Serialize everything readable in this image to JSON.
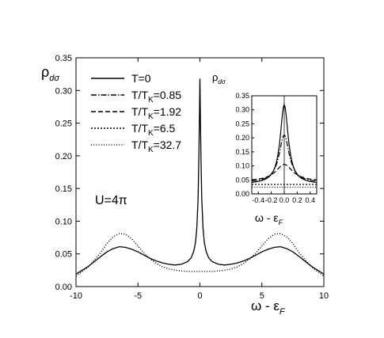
{
  "chart_data": [
    {
      "type": "line",
      "title": "",
      "xlabel": {
        "main": "ω - ε",
        "sub": "F"
      },
      "ylabel": {
        "main": "ρ",
        "sub": "dσ"
      },
      "xlim": [
        -10,
        10
      ],
      "ylim": [
        0.0,
        0.35
      ],
      "xticks": [
        -10,
        -5,
        0,
        5,
        10
      ],
      "yticks": [
        0.0,
        0.05,
        0.1,
        0.15,
        0.2,
        0.25,
        0.3,
        0.35
      ],
      "ytick_labels": [
        "0.00",
        "0.05",
        "0.10",
        "0.15",
        "0.20",
        "0.25",
        "0.30",
        "0.35"
      ],
      "xtick_labels": [
        "-10",
        "-5",
        "0",
        "5",
        "10"
      ],
      "annotation": "U=4π",
      "legend": [
        {
          "main": "T=0",
          "sub": "",
          "tail": "",
          "style": "solid"
        },
        {
          "main": "T/T",
          "sub": "K",
          "tail": "=0.85",
          "style": "dashdot"
        },
        {
          "main": "T/T",
          "sub": "K",
          "tail": "=1.92",
          "style": "dashed"
        },
        {
          "main": "T/T",
          "sub": "K",
          "tail": "=6.5",
          "style": "shortdash"
        },
        {
          "main": "T/T",
          "sub": "K",
          "tail": "=32.7",
          "style": "dotted"
        }
      ],
      "series": [
        {
          "style": "solid",
          "x": [
            -10,
            -9,
            -8,
            -7.5,
            -7,
            -6.5,
            -6,
            -5.5,
            -5,
            -4.5,
            -4,
            -3.5,
            -3,
            -2.5,
            -2,
            -1.5,
            -1,
            -0.7,
            -0.5,
            -0.35,
            -0.25,
            -0.15,
            -0.08,
            -0.04,
            0,
            0.04,
            0.08,
            0.15,
            0.25,
            0.35,
            0.5,
            0.7,
            1,
            1.5,
            2,
            2.5,
            3,
            3.5,
            4,
            4.5,
            5,
            5.5,
            6,
            6.5,
            7,
            7.5,
            8,
            9,
            10
          ],
          "y": [
            0.019,
            0.031,
            0.046,
            0.053,
            0.058,
            0.061,
            0.06,
            0.057,
            0.053,
            0.048,
            0.043,
            0.039,
            0.036,
            0.034,
            0.033,
            0.034,
            0.038,
            0.044,
            0.054,
            0.068,
            0.09,
            0.135,
            0.2,
            0.26,
            0.318,
            0.26,
            0.2,
            0.135,
            0.09,
            0.068,
            0.054,
            0.044,
            0.038,
            0.034,
            0.033,
            0.034,
            0.036,
            0.039,
            0.043,
            0.048,
            0.053,
            0.057,
            0.06,
            0.061,
            0.058,
            0.053,
            0.046,
            0.031,
            0.019
          ]
        },
        {
          "style": "dotted",
          "x": [
            -10,
            -9,
            -8,
            -7.5,
            -7,
            -6.5,
            -6,
            -5.5,
            -5,
            -4.5,
            -4,
            -3.5,
            -3,
            -2.5,
            -2,
            -1.5,
            -1,
            -0.5,
            0,
            0.5,
            1,
            1.5,
            2,
            2.5,
            3,
            3.5,
            4,
            4.5,
            5,
            5.5,
            6,
            6.5,
            7,
            7.5,
            8,
            9,
            10
          ],
          "y": [
            0.016,
            0.03,
            0.052,
            0.066,
            0.076,
            0.081,
            0.08,
            0.073,
            0.062,
            0.051,
            0.042,
            0.035,
            0.03,
            0.027,
            0.025,
            0.024,
            0.023,
            0.023,
            0.023,
            0.023,
            0.023,
            0.024,
            0.025,
            0.027,
            0.03,
            0.035,
            0.042,
            0.051,
            0.062,
            0.073,
            0.08,
            0.081,
            0.076,
            0.066,
            0.052,
            0.03,
            0.016
          ]
        }
      ]
    },
    {
      "type": "line",
      "title": "",
      "xlabel": {
        "main": "ω - ε",
        "sub": "F"
      },
      "ylabel": {
        "main": "ρ",
        "sub": "dσ"
      },
      "xlim": [
        -0.5,
        0.5
      ],
      "ylim": [
        0.0,
        0.35
      ],
      "xticks": [
        -0.4,
        -0.2,
        0.0,
        0.2,
        0.4
      ],
      "xtick_labels": [
        "-0.4",
        "-0.2",
        "0.0",
        "0.2",
        "0.4"
      ],
      "yticks": [
        0.0,
        0.05,
        0.1,
        0.15,
        0.2,
        0.25,
        0.3,
        0.35
      ],
      "ytick_labels": [
        "0.00",
        "0.05",
        "0.10",
        "0.15",
        "0.20",
        "0.25",
        "0.30",
        "0.35"
      ],
      "series": [
        {
          "style": "solid",
          "peak": 0.318,
          "width": 0.075,
          "base": 0.035
        },
        {
          "style": "dashdot",
          "peak": 0.21,
          "width": 0.095,
          "base": 0.04
        },
        {
          "style": "dashed",
          "peak": 0.105,
          "width": 0.16,
          "base": 0.045
        },
        {
          "style": "shortdash",
          "peak": 0.034,
          "width": 1.0,
          "base": 0.034
        },
        {
          "style": "dotted",
          "peak": 0.024,
          "width": 1.0,
          "base": 0.024
        }
      ]
    }
  ]
}
